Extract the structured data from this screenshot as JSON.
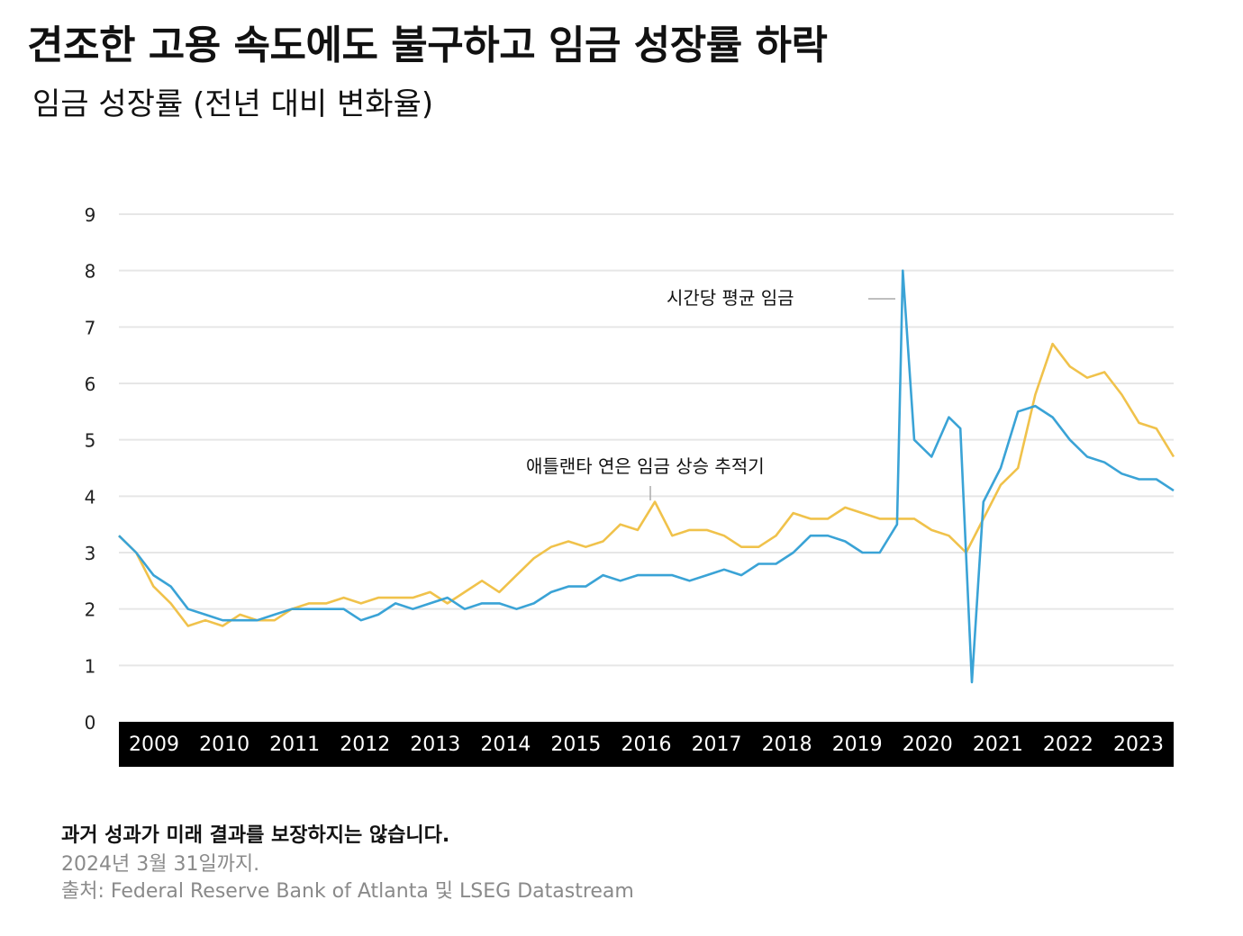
{
  "title": "견조한 고용 속도에도 불구하고 임금 성장률 하락",
  "subtitle": "임금 성장률 (전년 대비 변화율)",
  "colors": {
    "atlanta": "#f0c24b",
    "hourly": "#3aa3d6",
    "axis_band": "#000000",
    "grid": "#e6e6e6"
  },
  "chart_data": {
    "type": "line",
    "x_start": "2008-12",
    "x_end": "2024-03",
    "x_tick_labels": [
      "2009",
      "2010",
      "2011",
      "2012",
      "2013",
      "2014",
      "2015",
      "2016",
      "2017",
      "2018",
      "2019",
      "2020",
      "2021",
      "2022",
      "2023"
    ],
    "y_ticks": [
      0,
      1,
      2,
      3,
      4,
      5,
      6,
      7,
      8,
      9
    ],
    "ylim": [
      0,
      9
    ],
    "grid": true,
    "annotations": [
      {
        "text": "시간당 평균 임금",
        "series": "hourly"
      },
      {
        "text": "애틀랜타 연은 임금 상승 추적기",
        "series": "atlanta"
      }
    ],
    "series": [
      {
        "key": "atlanta",
        "color": "#f0c24b",
        "points": [
          [
            "2008-12",
            3.3
          ],
          [
            "2009-03",
            3.0
          ],
          [
            "2009-06",
            2.4
          ],
          [
            "2009-09",
            2.1
          ],
          [
            "2009-12",
            1.7
          ],
          [
            "2010-03",
            1.8
          ],
          [
            "2010-06",
            1.7
          ],
          [
            "2010-09",
            1.9
          ],
          [
            "2010-12",
            1.8
          ],
          [
            "2011-03",
            1.8
          ],
          [
            "2011-06",
            2.0
          ],
          [
            "2011-09",
            2.1
          ],
          [
            "2011-12",
            2.1
          ],
          [
            "2012-03",
            2.2
          ],
          [
            "2012-06",
            2.1
          ],
          [
            "2012-09",
            2.2
          ],
          [
            "2012-12",
            2.2
          ],
          [
            "2013-03",
            2.2
          ],
          [
            "2013-06",
            2.3
          ],
          [
            "2013-09",
            2.1
          ],
          [
            "2013-12",
            2.3
          ],
          [
            "2014-03",
            2.5
          ],
          [
            "2014-06",
            2.3
          ],
          [
            "2014-09",
            2.6
          ],
          [
            "2014-12",
            2.9
          ],
          [
            "2015-03",
            3.1
          ],
          [
            "2015-06",
            3.2
          ],
          [
            "2015-09",
            3.1
          ],
          [
            "2015-12",
            3.2
          ],
          [
            "2016-03",
            3.5
          ],
          [
            "2016-06",
            3.4
          ],
          [
            "2016-09",
            3.9
          ],
          [
            "2016-12",
            3.3
          ],
          [
            "2017-03",
            3.4
          ],
          [
            "2017-06",
            3.4
          ],
          [
            "2017-09",
            3.3
          ],
          [
            "2017-12",
            3.1
          ],
          [
            "2018-03",
            3.1
          ],
          [
            "2018-06",
            3.3
          ],
          [
            "2018-09",
            3.7
          ],
          [
            "2018-12",
            3.6
          ],
          [
            "2019-03",
            3.6
          ],
          [
            "2019-06",
            3.8
          ],
          [
            "2019-09",
            3.7
          ],
          [
            "2019-12",
            3.6
          ],
          [
            "2020-03",
            3.6
          ],
          [
            "2020-06",
            3.6
          ],
          [
            "2020-09",
            3.4
          ],
          [
            "2020-12",
            3.3
          ],
          [
            "2021-03",
            3.0
          ],
          [
            "2021-06",
            3.6
          ],
          [
            "2021-09",
            4.2
          ],
          [
            "2021-12",
            4.5
          ],
          [
            "2022-03",
            5.8
          ],
          [
            "2022-06",
            6.7
          ],
          [
            "2022-09",
            6.3
          ],
          [
            "2022-12",
            6.1
          ],
          [
            "2023-03",
            6.2
          ],
          [
            "2023-06",
            5.8
          ],
          [
            "2023-09",
            5.3
          ],
          [
            "2023-12",
            5.2
          ],
          [
            "2024-03",
            4.7
          ]
        ]
      },
      {
        "key": "hourly",
        "color": "#3aa3d6",
        "points": [
          [
            "2008-12",
            3.3
          ],
          [
            "2009-03",
            3.0
          ],
          [
            "2009-06",
            2.6
          ],
          [
            "2009-09",
            2.4
          ],
          [
            "2009-12",
            2.0
          ],
          [
            "2010-03",
            1.9
          ],
          [
            "2010-06",
            1.8
          ],
          [
            "2010-09",
            1.8
          ],
          [
            "2010-12",
            1.8
          ],
          [
            "2011-03",
            1.9
          ],
          [
            "2011-06",
            2.0
          ],
          [
            "2011-09",
            2.0
          ],
          [
            "2011-12",
            2.0
          ],
          [
            "2012-03",
            2.0
          ],
          [
            "2012-06",
            1.8
          ],
          [
            "2012-09",
            1.9
          ],
          [
            "2012-12",
            2.1
          ],
          [
            "2013-03",
            2.0
          ],
          [
            "2013-06",
            2.1
          ],
          [
            "2013-09",
            2.2
          ],
          [
            "2013-12",
            2.0
          ],
          [
            "2014-03",
            2.1
          ],
          [
            "2014-06",
            2.1
          ],
          [
            "2014-09",
            2.0
          ],
          [
            "2014-12",
            2.1
          ],
          [
            "2015-03",
            2.3
          ],
          [
            "2015-06",
            2.4
          ],
          [
            "2015-09",
            2.4
          ],
          [
            "2015-12",
            2.6
          ],
          [
            "2016-03",
            2.5
          ],
          [
            "2016-06",
            2.6
          ],
          [
            "2016-09",
            2.6
          ],
          [
            "2016-12",
            2.6
          ],
          [
            "2017-03",
            2.5
          ],
          [
            "2017-06",
            2.6
          ],
          [
            "2017-09",
            2.7
          ],
          [
            "2017-12",
            2.6
          ],
          [
            "2018-03",
            2.8
          ],
          [
            "2018-06",
            2.8
          ],
          [
            "2018-09",
            3.0
          ],
          [
            "2018-12",
            3.3
          ],
          [
            "2019-03",
            3.3
          ],
          [
            "2019-06",
            3.2
          ],
          [
            "2019-09",
            3.0
          ],
          [
            "2019-12",
            3.0
          ],
          [
            "2020-03",
            3.5
          ],
          [
            "2020-04",
            8.0
          ],
          [
            "2020-06",
            5.0
          ],
          [
            "2020-09",
            4.7
          ],
          [
            "2020-12",
            5.4
          ],
          [
            "2021-02",
            5.2
          ],
          [
            "2021-04",
            0.7
          ],
          [
            "2021-06",
            3.9
          ],
          [
            "2021-09",
            4.5
          ],
          [
            "2021-12",
            5.5
          ],
          [
            "2022-03",
            5.6
          ],
          [
            "2022-06",
            5.4
          ],
          [
            "2022-09",
            5.0
          ],
          [
            "2022-12",
            4.7
          ],
          [
            "2023-03",
            4.6
          ],
          [
            "2023-06",
            4.4
          ],
          [
            "2023-09",
            4.3
          ],
          [
            "2023-12",
            4.3
          ],
          [
            "2024-03",
            4.1
          ]
        ]
      }
    ]
  },
  "footer": {
    "disclaimer": "과거 성과가 미래 결과를 보장하지는 않습니다.",
    "date_note": "2024년 3월 31일까지.",
    "source": "출처: Federal Reserve Bank of Atlanta 및 LSEG Datastream"
  }
}
